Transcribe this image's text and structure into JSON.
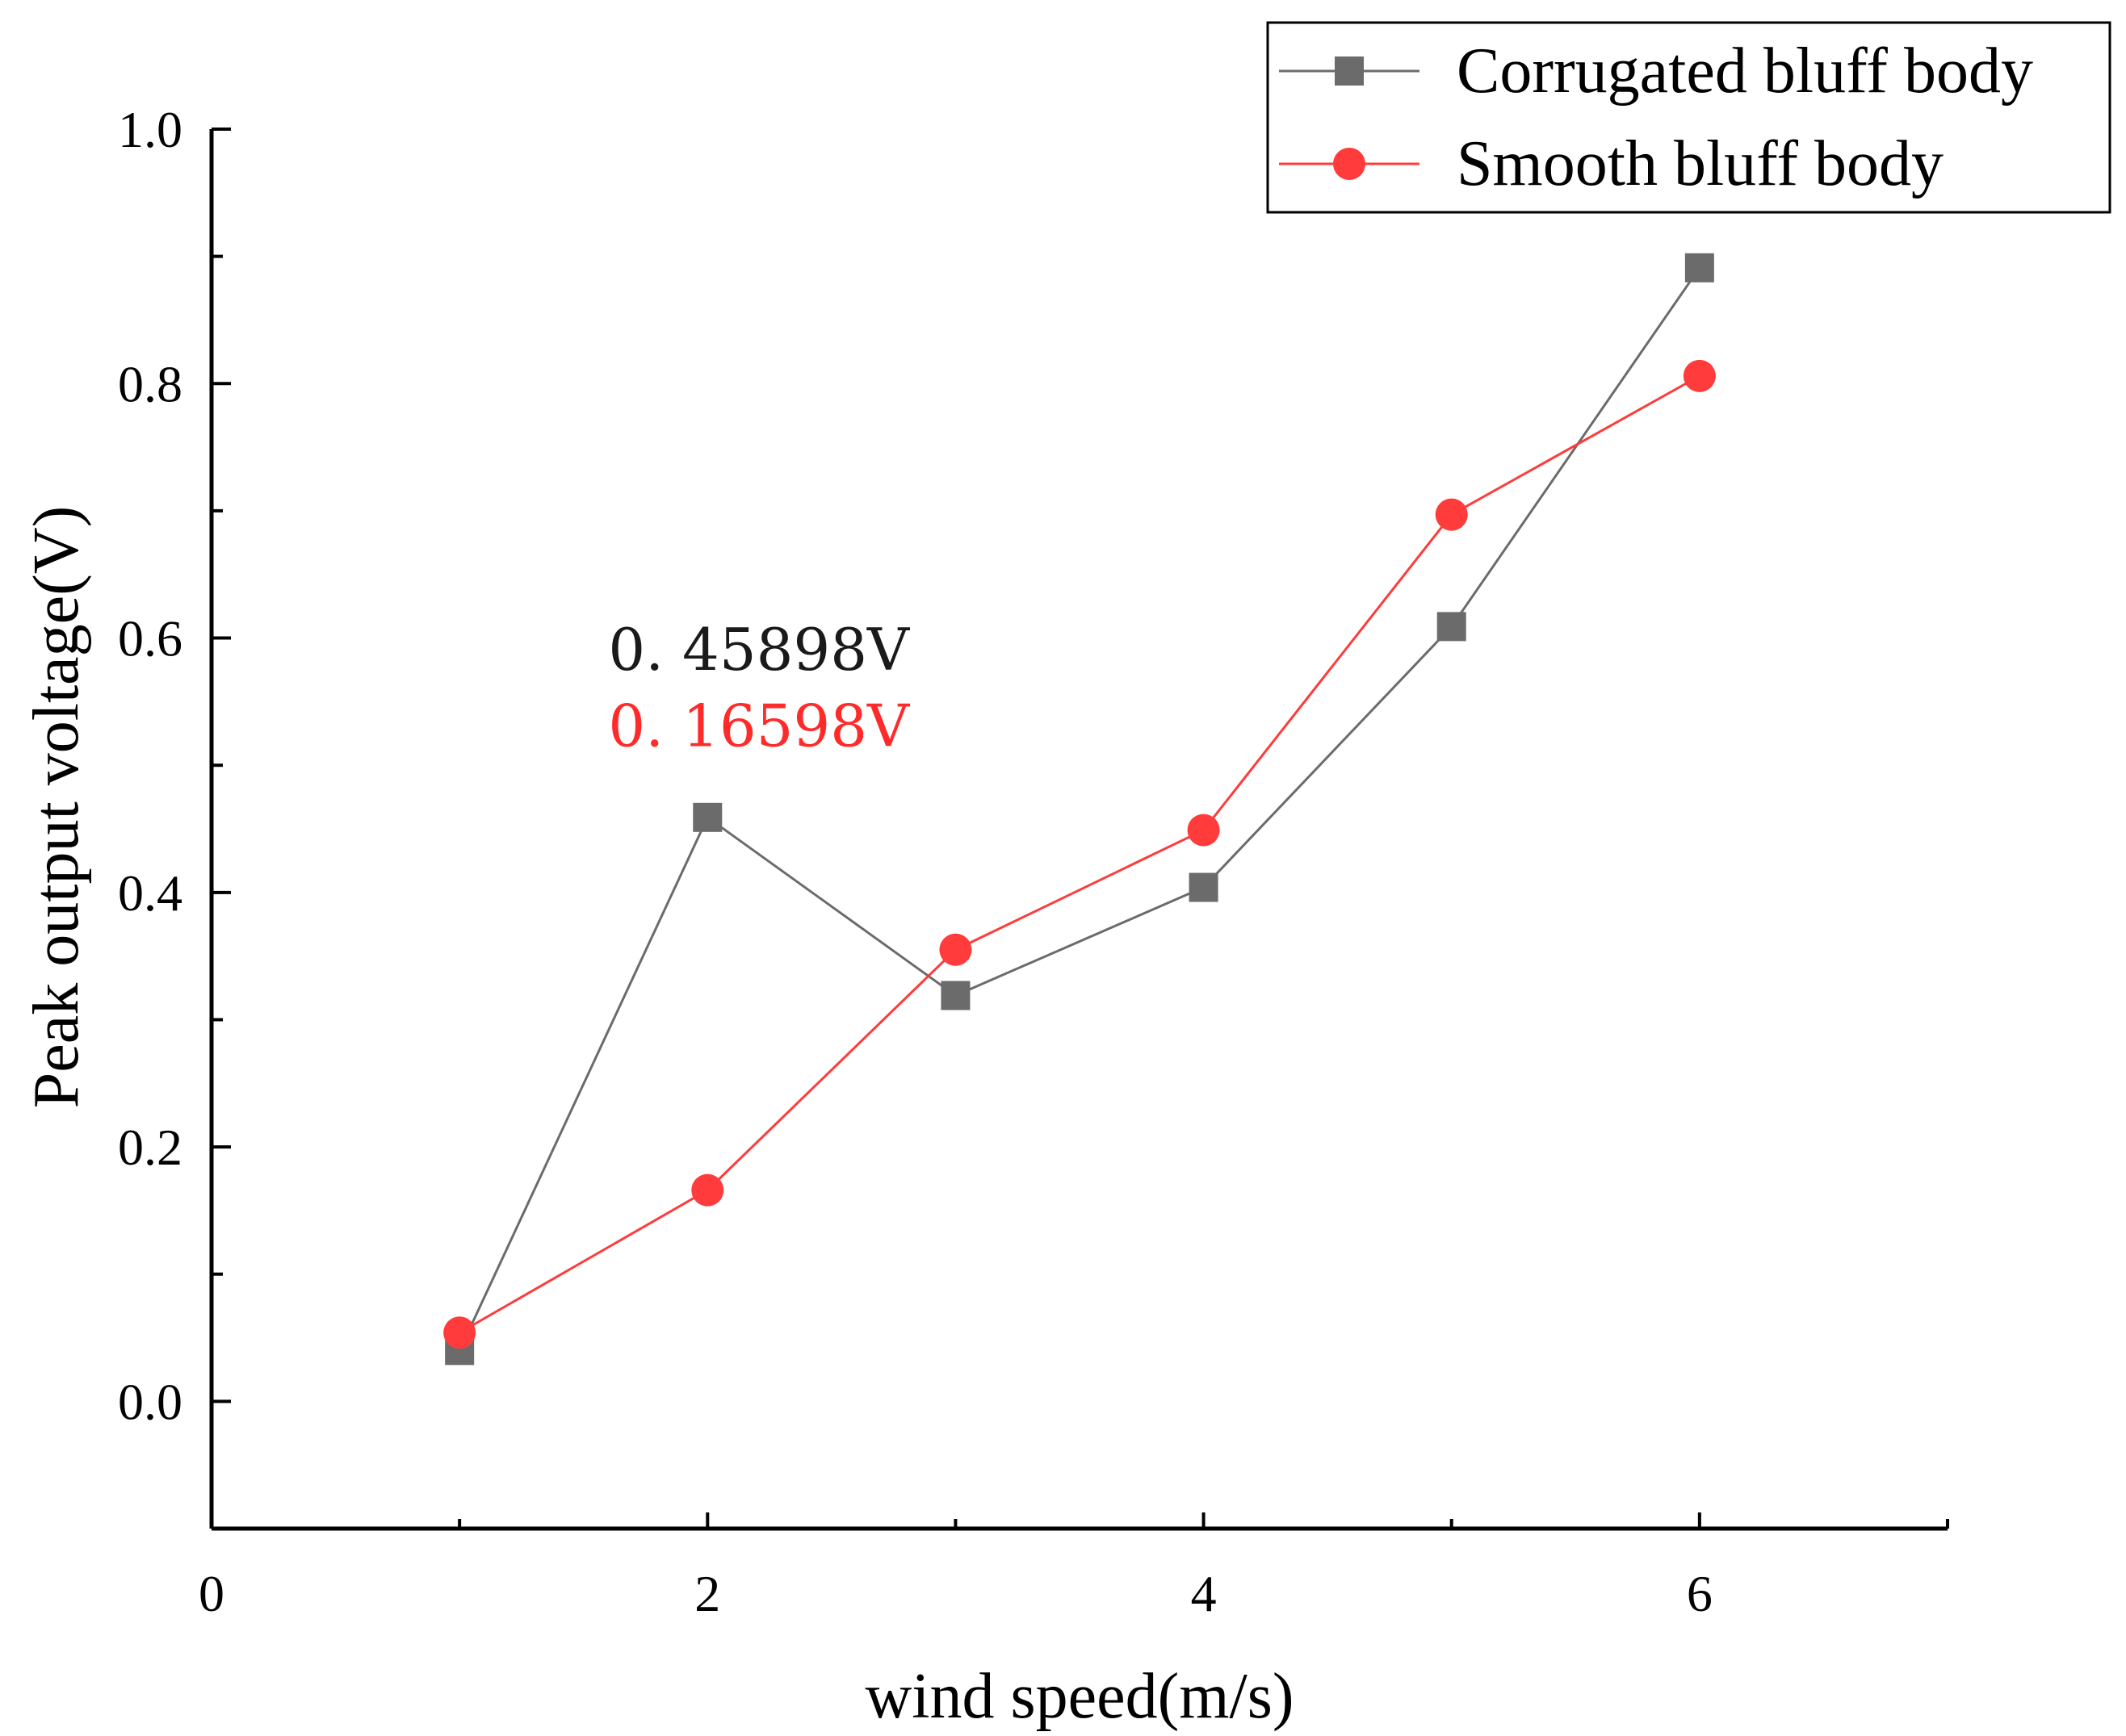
{
  "chart_data": {
    "type": "line",
    "title": "",
    "xlabel": "wind speed(m/s)",
    "ylabel": "Peak output voltage(V)",
    "xlim": [
      0,
      7
    ],
    "ylim": [
      -0.1,
      1.0
    ],
    "xticks": [
      0,
      2,
      4,
      6
    ],
    "xtick_labels": [
      "0",
      "2",
      "4",
      "6"
    ],
    "xminor": [
      1,
      3,
      5,
      7
    ],
    "yticks": [
      0.0,
      0.2,
      0.4,
      0.6,
      0.8,
      1.0
    ],
    "ytick_labels": [
      "0.0",
      "0.2",
      "0.4",
      "0.6",
      "0.8",
      "1.0"
    ],
    "yminor": [
      -0.1,
      0.1,
      0.3,
      0.5,
      0.7,
      0.9
    ],
    "grid": false,
    "legend_position": "top-right",
    "series": [
      {
        "name": "Corrugated bluff body",
        "marker": "square",
        "color": "#6b6b6b",
        "x": [
          1,
          2,
          3,
          4,
          5,
          6
        ],
        "y": [
          0.04,
          0.459,
          0.319,
          0.404,
          0.609,
          0.891
        ]
      },
      {
        "name": "Smooth bluff body",
        "marker": "circle",
        "color": "#ff3b3b",
        "x": [
          1,
          2,
          3,
          4,
          5,
          6
        ],
        "y": [
          0.054,
          0.166,
          0.355,
          0.449,
          0.697,
          0.806
        ]
      }
    ],
    "annotations": [
      {
        "text": "0. 45898V",
        "color": "#1a1a1a",
        "x": 1.6,
        "y": 0.575
      },
      {
        "text": "0. 16598V",
        "color": "#ff2a2a",
        "x": 1.6,
        "y": 0.515
      }
    ]
  }
}
